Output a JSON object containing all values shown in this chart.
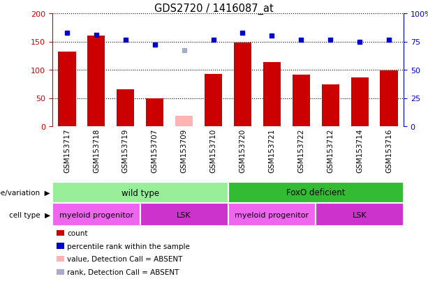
{
  "title": "GDS2720 / 1416087_at",
  "samples": [
    "GSM153717",
    "GSM153718",
    "GSM153719",
    "GSM153707",
    "GSM153709",
    "GSM153710",
    "GSM153720",
    "GSM153721",
    "GSM153722",
    "GSM153712",
    "GSM153714",
    "GSM153716"
  ],
  "counts": [
    132,
    160,
    65,
    50,
    null,
    93,
    148,
    114,
    91,
    74,
    86,
    99
  ],
  "counts_absent": [
    null,
    null,
    null,
    null,
    18,
    null,
    null,
    null,
    null,
    null,
    null,
    null
  ],
  "percentile_ranks": [
    165,
    162,
    153,
    144,
    null,
    153,
    165,
    160,
    153,
    153,
    150,
    153
  ],
  "percentile_ranks_absent": [
    null,
    null,
    null,
    null,
    135,
    null,
    null,
    null,
    null,
    null,
    null,
    null
  ],
  "ylim_left": [
    0,
    200
  ],
  "yticks_left": [
    0,
    50,
    100,
    150,
    200
  ],
  "ytick_labels_right": [
    "0",
    "25",
    "50",
    "75",
    "100%"
  ],
  "bar_color": "#cc0000",
  "bar_color_absent": "#ffb3b3",
  "dot_color": "#0000cc",
  "dot_color_absent": "#aaaacc",
  "left_yaxis_color": "#cc0000",
  "right_yaxis_color": "#0000cc",
  "genotype_groups": [
    {
      "label": "wild type",
      "start": 0,
      "end": 5,
      "color": "#99ee99"
    },
    {
      "label": "FoxO deficient",
      "start": 6,
      "end": 11,
      "color": "#33bb33"
    }
  ],
  "cell_type_groups": [
    {
      "label": "myeloid progenitor",
      "start": 0,
      "end": 2,
      "color": "#ee66ee"
    },
    {
      "label": "LSK",
      "start": 3,
      "end": 5,
      "color": "#cc33cc"
    },
    {
      "label": "myeloid progenitor",
      "start": 6,
      "end": 8,
      "color": "#ee66ee"
    },
    {
      "label": "LSK",
      "start": 9,
      "end": 11,
      "color": "#cc33cc"
    }
  ],
  "legend_items": [
    {
      "label": "count",
      "color": "#cc0000"
    },
    {
      "label": "percentile rank within the sample",
      "color": "#0000cc"
    },
    {
      "label": "value, Detection Call = ABSENT",
      "color": "#ffb3b3"
    },
    {
      "label": "rank, Detection Call = ABSENT",
      "color": "#aaaacc"
    }
  ],
  "xlabel_bg_color": "#cccccc",
  "plot_bg_color": "#ffffff"
}
